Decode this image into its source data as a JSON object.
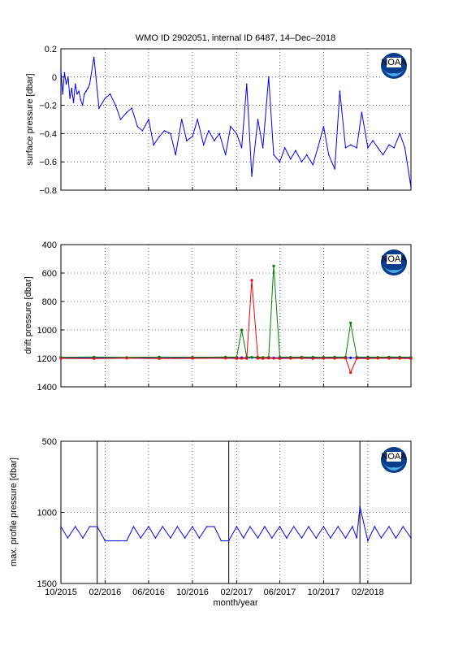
{
  "figure": {
    "title": "WMO ID 2902051, internal ID 6487, 14–Dec–2018",
    "xlabel": "month/year",
    "x_tick_labels": [
      "10/2015",
      "02/2016",
      "06/2016",
      "10/2016",
      "02/2017",
      "06/2017",
      "10/2017",
      "02/2018"
    ],
    "logo_text": "NOAA"
  },
  "chart_data": [
    {
      "type": "line",
      "name": "surface",
      "ylabel": "surface pressure [dbar]",
      "ylim": [
        -0.8,
        0.2
      ],
      "y_ticks": [
        0.2,
        0,
        -0.2,
        -0.4,
        -0.6,
        -0.8
      ],
      "y_tick_labels": [
        "0.2",
        "0",
        "−0.2",
        "−0.4",
        "−0.6",
        "−0.8"
      ],
      "x": [
        "2015-10-01",
        "2015-10-06",
        "2015-10-11",
        "2015-10-16",
        "2015-10-21",
        "2015-10-26",
        "2015-10-31",
        "2015-11-05",
        "2015-11-10",
        "2015-11-15",
        "2015-11-20",
        "2015-11-25",
        "2015-11-30",
        "2015-12-05",
        "2015-12-10",
        "2015-12-15",
        "2015-12-20",
        "2016-01-01",
        "2016-01-15",
        "2016-02-01",
        "2016-02-15",
        "2016-03-01",
        "2016-03-15",
        "2016-04-01",
        "2016-04-15",
        "2016-05-01",
        "2016-05-15",
        "2016-06-01",
        "2016-06-15",
        "2016-07-01",
        "2016-07-15",
        "2016-08-01",
        "2016-08-15",
        "2016-09-01",
        "2016-09-15",
        "2016-10-01",
        "2016-10-15",
        "2016-11-01",
        "2016-11-15",
        "2016-12-01",
        "2016-12-15",
        "2017-01-01",
        "2017-01-15",
        "2017-02-01",
        "2017-02-15",
        "2017-03-01",
        "2017-03-15",
        "2017-04-01",
        "2017-04-15",
        "2017-05-01",
        "2017-05-15",
        "2017-06-01",
        "2017-06-15",
        "2017-07-01",
        "2017-07-15",
        "2017-08-01",
        "2017-08-15",
        "2017-09-01",
        "2017-09-15",
        "2017-10-01",
        "2017-10-15",
        "2017-11-01",
        "2017-11-15",
        "2017-12-01",
        "2017-12-15",
        "2018-01-01",
        "2018-01-15",
        "2018-02-01",
        "2018-02-15",
        "2018-03-01",
        "2018-03-15",
        "2018-04-01",
        "2018-04-15",
        "2018-05-01",
        "2018-05-15",
        "2018-06-01"
      ],
      "series": [
        {
          "values": [
            0.05,
            -0.12,
            0.03,
            -0.05,
            0.0,
            -0.15,
            -0.08,
            -0.18,
            -0.05,
            -0.12,
            -0.1,
            -0.16,
            -0.2,
            -0.12,
            -0.1,
            -0.08,
            -0.05,
            0.14,
            -0.22,
            -0.15,
            -0.12,
            -0.2,
            -0.3,
            -0.25,
            -0.22,
            -0.35,
            -0.38,
            -0.3,
            -0.48,
            -0.42,
            -0.38,
            -0.4,
            -0.55,
            -0.3,
            -0.45,
            -0.42,
            -0.3,
            -0.48,
            -0.38,
            -0.45,
            -0.4,
            -0.55,
            -0.35,
            -0.4,
            -0.5,
            -0.05,
            -0.7,
            -0.3,
            -0.5,
            0.0,
            -0.55,
            -0.6,
            -0.5,
            -0.58,
            -0.52,
            -0.6,
            -0.55,
            -0.62,
            -0.5,
            -0.35,
            -0.55,
            -0.65,
            -0.1,
            -0.5,
            -0.48,
            -0.5,
            -0.25,
            -0.5,
            -0.45,
            -0.5,
            -0.55,
            -0.48,
            -0.5,
            -0.4,
            -0.5,
            -0.78
          ]
        }
      ]
    },
    {
      "type": "line",
      "name": "drift",
      "ylabel": "drift pressure [dbar]",
      "ylim": [
        1400,
        400
      ],
      "y_ticks": [
        400,
        600,
        800,
        1000,
        1200,
        1400
      ],
      "y_tick_labels": [
        "400",
        "600",
        "800",
        "1000",
        "1200",
        "1400"
      ],
      "x": [
        "2015-10-01",
        "2016-01-01",
        "2016-04-01",
        "2016-07-01",
        "2016-10-01",
        "2017-01-01",
        "2017-02-01",
        "2017-02-15",
        "2017-03-01",
        "2017-03-15",
        "2017-04-01",
        "2017-04-15",
        "2017-05-01",
        "2017-05-15",
        "2017-06-01",
        "2017-07-01",
        "2017-08-01",
        "2017-09-01",
        "2017-10-01",
        "2017-11-01",
        "2017-12-01",
        "2017-12-15",
        "2018-01-01",
        "2018-02-01",
        "2018-03-01",
        "2018-04-01",
        "2018-05-01",
        "2018-06-01"
      ],
      "series": [
        {
          "name": "",
          "color": "#0000ff",
          "values": [
            1195,
            1195,
            1196,
            1194,
            1195,
            1196,
            1195,
            1195,
            1196,
            1194,
            1196,
            1195,
            1195,
            1196,
            1195,
            1195,
            1195,
            1196,
            1195,
            1195,
            1195,
            1196,
            1195,
            1195,
            1196,
            1195,
            1196,
            1195
          ]
        },
        {
          "name": "",
          "color": "#008000",
          "values": [
            1192,
            1190,
            1193,
            1191,
            1192,
            1190,
            1192,
            1000,
            1190,
            1192,
            1191,
            1193,
            1192,
            550,
            1191,
            1192,
            1190,
            1191,
            1192,
            1191,
            1190,
            950,
            1190,
            1191,
            1192,
            1190,
            1191,
            1192
          ]
        },
        {
          "name": "",
          "color": "#ff0000",
          "values": [
            1200,
            1201,
            1199,
            1201,
            1200,
            1199,
            1201,
            1200,
            1201,
            650,
            1200,
            1201,
            1199,
            1200,
            1201,
            1200,
            1199,
            1201,
            1200,
            1200,
            1199,
            1300,
            1200,
            1201,
            1199,
            1200,
            1200,
            1201
          ]
        }
      ]
    },
    {
      "type": "line",
      "name": "maxprofile",
      "ylabel": "max. profile pressure [dbar]",
      "ylim": [
        1500,
        500
      ],
      "y_ticks": [
        500,
        1000,
        1500
      ],
      "y_tick_labels": [
        "500",
        "1000",
        "1500"
      ],
      "x": [
        "2015-10-01",
        "2015-10-20",
        "2015-11-10",
        "2015-12-01",
        "2015-12-20",
        "2016-01-10",
        "2016-02-01",
        "2016-02-20",
        "2016-03-10",
        "2016-04-01",
        "2016-04-20",
        "2016-05-10",
        "2016-06-01",
        "2016-06-20",
        "2016-07-10",
        "2016-08-01",
        "2016-08-20",
        "2016-09-10",
        "2016-10-01",
        "2016-10-20",
        "2016-11-10",
        "2016-12-01",
        "2016-12-20",
        "2017-01-10",
        "2017-02-01",
        "2017-02-20",
        "2017-03-10",
        "2017-04-01",
        "2017-04-20",
        "2017-05-10",
        "2017-06-01",
        "2017-06-20",
        "2017-07-10",
        "2017-08-01",
        "2017-08-20",
        "2017-09-10",
        "2017-10-01",
        "2017-10-20",
        "2017-11-10",
        "2017-12-01",
        "2017-12-20",
        "2018-01-01",
        "2018-01-10",
        "2018-02-01",
        "2018-02-20",
        "2018-03-10",
        "2018-04-01",
        "2018-04-20",
        "2018-05-10",
        "2018-06-01"
      ],
      "series": [
        {
          "values": [
            1100,
            1180,
            1100,
            1180,
            1100,
            1100,
            1200,
            1200,
            1200,
            1200,
            1100,
            1180,
            1100,
            1180,
            1100,
            1180,
            1100,
            1180,
            1100,
            1180,
            1100,
            1100,
            1200,
            1200,
            1100,
            1180,
            1100,
            1180,
            1100,
            1180,
            1100,
            1180,
            1100,
            1180,
            1100,
            1180,
            1100,
            1180,
            1100,
            1180,
            1100,
            1180,
            960,
            1200,
            1100,
            1180,
            1100,
            1180,
            1100,
            1180
          ]
        }
      ],
      "vertical_markers": [
        "2016-01-10",
        "2017-01-10",
        "2018-01-10"
      ]
    }
  ]
}
